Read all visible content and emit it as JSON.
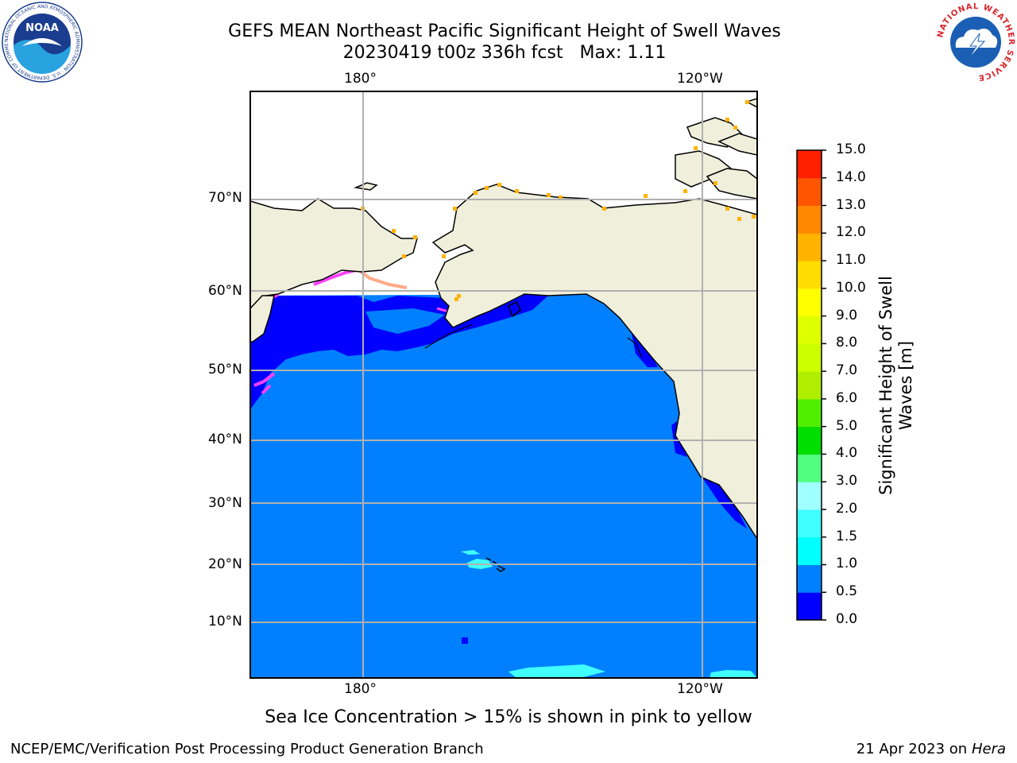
{
  "header": {
    "title_line1": "GEFS MEAN Northeast Pacific Significant Height of Swell Waves",
    "title_line2": "20230419 t00z 336h fcst   Max: 1.11"
  },
  "logos": {
    "noaa_text": "NOAA",
    "noaa_ring_text": "NATIONAL OCEANIC AND ATMOSPHERIC ADMINISTRATION · U.S. DEPARTMENT OF COMMERCE",
    "nws_ring_text": "NATIONAL WEATHER SERVICE"
  },
  "map": {
    "lon_labels_top": [
      "180°",
      "120°W"
    ],
    "lon_labels_bottom": [
      "180°",
      "120°W"
    ],
    "lat_labels": [
      "70°N",
      "60°N",
      "50°N",
      "40°N",
      "30°N",
      "20°N",
      "10°N"
    ],
    "ocean_color": "#0080ff",
    "low_color": "#0000ff",
    "land_color": "#efefdc",
    "ice_color": "#ff40ff"
  },
  "colorbar": {
    "title_line1": "Significant Height of Swell",
    "title_line2": "Waves [m]",
    "tick_labels": [
      "0.0",
      "0.5",
      "1.0",
      "1.5",
      "2.0",
      "3.0",
      "4.0",
      "5.0",
      "6.0",
      "7.0",
      "8.0",
      "9.0",
      "10.0",
      "11.0",
      "12.0",
      "13.0",
      "14.0",
      "15.0"
    ],
    "colors": [
      "#0000ff",
      "#0080ff",
      "#00ffff",
      "#40ffff",
      "#a0ffff",
      "#50ff80",
      "#00dd00",
      "#50ee00",
      "#b0ee00",
      "#ccff00",
      "#ddff00",
      "#ffff00",
      "#ffdd00",
      "#ffb300",
      "#ff8800",
      "#ff5500",
      "#ff2000"
    ]
  },
  "note": "Sea Ice Concentration > 15% is shown in pink to yellow",
  "footer": {
    "left": "NCEP/EMC/Verification Post Processing Product Generation Branch",
    "date": "21 Apr 2023 on ",
    "machine": "Hera"
  }
}
